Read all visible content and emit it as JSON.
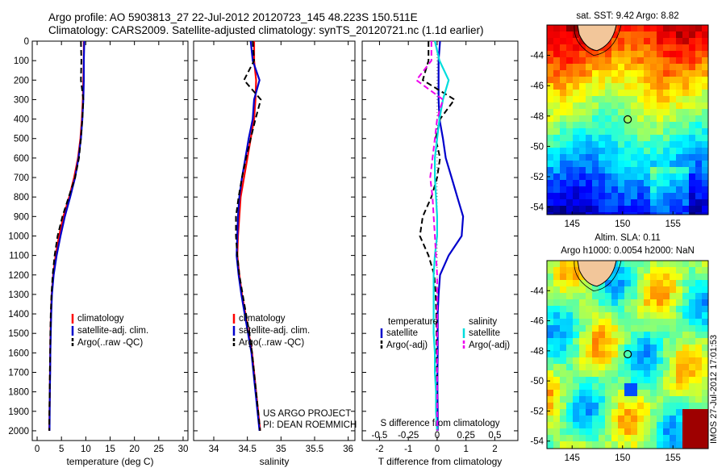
{
  "header": {
    "line1": "Argo profile: AO 5903813_27 22-Jul-2012 20120723_145 48.223S 150.511E",
    "line2": "Climatology: CARS2009. Satellite-adjusted climatology: synTS_20120721.nc (1.1d earlier)"
  },
  "project_note": {
    "line1": "US ARGO PROJECT",
    "line2": "PI: DEAN ROEMMICH"
  },
  "side_stamp": "IMOS 27-Jul-2012 17:01:53",
  "colors": {
    "climatology": "#ff0000",
    "satellite": "#0000cc",
    "argo": "#000000",
    "satellite_salinity": "#00dddd",
    "argo_salinity": "#ee00ee"
  },
  "chart_data": [
    {
      "type": "line",
      "title": "",
      "xlabel": "temperature (deg C)",
      "ylabel": "",
      "xlim": [
        -1,
        31
      ],
      "ylim": [
        2050,
        0
      ],
      "xticks": [
        "0",
        "5",
        "10",
        "15",
        "20",
        "25",
        "30"
      ],
      "xtick_values": [
        0,
        5,
        10,
        15,
        20,
        25,
        30
      ],
      "yticks": [
        "0",
        "100",
        "200",
        "300",
        "400",
        "500",
        "600",
        "700",
        "800",
        "900",
        "1000",
        "1100",
        "1200",
        "1300",
        "1400",
        "1500",
        "1600",
        "1700",
        "1800",
        "1900",
        "2000"
      ],
      "ytick_values": [
        0,
        100,
        200,
        300,
        400,
        500,
        600,
        700,
        800,
        900,
        1000,
        1100,
        1200,
        1300,
        1400,
        1500,
        1600,
        1700,
        1800,
        1900,
        2000
      ],
      "legend": {
        "position": "lower-center",
        "entries": [
          "climatology",
          "satellite-adj. clim.",
          "Argo(..raw -QC)"
        ]
      },
      "series": [
        {
          "name": "climatology",
          "style": "solid",
          "color": "#ff0000",
          "x": [
            9.6,
            9.6,
            9.5,
            9.4,
            9.2,
            8.9,
            8.4,
            7.6,
            6.6,
            5.4,
            4.5,
            3.8,
            3.3,
            3.0,
            2.85,
            2.75,
            2.7,
            2.65,
            2.6,
            2.55,
            2.5
          ],
          "y": [
            0,
            100,
            200,
            300,
            400,
            500,
            600,
            700,
            800,
            900,
            1000,
            1100,
            1200,
            1300,
            1400,
            1500,
            1600,
            1700,
            1800,
            1900,
            2000
          ]
        },
        {
          "name": "satellite-adj. clim.",
          "style": "solid",
          "color": "#0000cc",
          "x": [
            9.7,
            9.6,
            9.6,
            9.5,
            9.3,
            9.0,
            8.5,
            7.8,
            6.8,
            5.7,
            4.8,
            4.0,
            3.4,
            3.05,
            2.9,
            2.8,
            2.72,
            2.68,
            2.62,
            2.58,
            2.55
          ],
          "y": [
            0,
            100,
            200,
            300,
            400,
            500,
            600,
            700,
            800,
            900,
            1000,
            1100,
            1200,
            1300,
            1400,
            1500,
            1600,
            1700,
            1800,
            1900,
            2000
          ]
        },
        {
          "name": "Argo(..raw -QC)",
          "style": "dashed",
          "color": "#000000",
          "x": [
            9.0,
            9.1,
            9.0,
            9.5,
            9.3,
            9.0,
            8.6,
            7.8,
            6.5,
            5.2,
            4.2,
            3.6,
            3.2,
            2.95,
            2.8,
            2.72,
            2.68,
            2.62,
            2.58,
            2.52,
            2.5
          ],
          "y": [
            0,
            100,
            200,
            300,
            400,
            500,
            600,
            700,
            800,
            900,
            1000,
            1100,
            1200,
            1300,
            1400,
            1500,
            1600,
            1700,
            1800,
            1900,
            2000
          ]
        }
      ]
    },
    {
      "type": "line",
      "title": "",
      "xlabel": "salinity",
      "ylabel": "",
      "xlim": [
        33.7,
        36.1
      ],
      "ylim": [
        2050,
        0
      ],
      "xticks": [
        "34",
        "34.5",
        "35",
        "35.5",
        "36"
      ],
      "xtick_values": [
        34,
        34.5,
        35,
        35.5,
        36
      ],
      "legend": {
        "position": "lower-center",
        "entries": [
          "climatology",
          "satellite-adj. clim.",
          "Argo(..raw -QC)"
        ]
      },
      "series": [
        {
          "name": "climatology",
          "style": "solid",
          "color": "#ff0000",
          "x": [
            34.6,
            34.6,
            34.63,
            34.62,
            34.6,
            34.55,
            34.5,
            34.45,
            34.4,
            34.38,
            34.36,
            34.35,
            34.38,
            34.42,
            34.47,
            34.52,
            34.57,
            34.6,
            34.63,
            34.66,
            34.69
          ],
          "y": [
            0,
            100,
            200,
            300,
            400,
            500,
            600,
            700,
            800,
            900,
            1000,
            1100,
            1200,
            1300,
            1400,
            1500,
            1600,
            1700,
            1800,
            1900,
            2000
          ]
        },
        {
          "name": "satellite-adj. clim.",
          "style": "solid",
          "color": "#0000cc",
          "x": [
            34.55,
            34.58,
            34.68,
            34.6,
            34.58,
            34.52,
            34.47,
            34.42,
            34.38,
            34.36,
            34.35,
            34.34,
            34.37,
            34.41,
            34.46,
            34.51,
            34.56,
            34.59,
            34.62,
            34.65,
            34.68
          ],
          "y": [
            0,
            100,
            200,
            300,
            400,
            500,
            600,
            700,
            800,
            900,
            1000,
            1100,
            1200,
            1300,
            1400,
            1500,
            1600,
            1700,
            1800,
            1900,
            2000
          ]
        },
        {
          "name": "Argo(..raw -QC)",
          "style": "dashed",
          "color": "#000000",
          "x": [
            34.58,
            34.6,
            34.45,
            34.7,
            34.62,
            34.55,
            34.48,
            34.42,
            34.37,
            34.33,
            34.33,
            34.35,
            34.38,
            34.43,
            34.48,
            34.53,
            34.57,
            34.6,
            34.63,
            34.66,
            34.69
          ],
          "y": [
            0,
            100,
            200,
            300,
            400,
            500,
            600,
            700,
            800,
            900,
            1000,
            1100,
            1200,
            1300,
            1400,
            1500,
            1600,
            1700,
            1800,
            1900,
            2000
          ]
        }
      ]
    },
    {
      "type": "line",
      "title": "",
      "xlabel": "T difference from climatology",
      "xlabel2": "S difference from climatology",
      "ylabel": "",
      "xlim": [
        -2.6,
        2.8
      ],
      "xlim_salinity": [
        -0.65,
        0.7
      ],
      "ylim": [
        2050,
        0
      ],
      "xticks": [
        "-2",
        "-1",
        "0",
        "1",
        "2"
      ],
      "xtick_values": [
        -2,
        -1,
        0,
        1,
        2
      ],
      "xticks_salinity": [
        "-0.5",
        "-0.25",
        "0",
        "0.25",
        "0.5"
      ],
      "xtick_values_salinity": [
        -0.5,
        -0.25,
        0,
        0.25,
        0.5
      ],
      "legend": {
        "position": "lower-center",
        "temperature_header": "temperature",
        "salinity_header": "salinity",
        "entries": [
          "satellite",
          "Argo(-adj)",
          "satellite",
          "Argo(-adj)"
        ]
      },
      "series": [
        {
          "name": "satellite",
          "group": "temperature",
          "style": "solid",
          "color": "#0000cc",
          "x": [
            0.1,
            0.05,
            0.05,
            0.05,
            0.08,
            0.2,
            0.3,
            0.5,
            0.7,
            0.9,
            0.85,
            0.4,
            0.1,
            0.05,
            0.02,
            0.02,
            0.02,
            0.01,
            0.01,
            0.02,
            0.02
          ],
          "y": [
            0,
            100,
            200,
            300,
            400,
            500,
            600,
            700,
            800,
            900,
            1000,
            1100,
            1200,
            1300,
            1400,
            1500,
            1600,
            1700,
            1800,
            1900,
            2000
          ]
        },
        {
          "name": "Argo(-adj)",
          "group": "temperature",
          "style": "dashed",
          "color": "#000000",
          "x": [
            -0.3,
            -0.3,
            -0.5,
            0.6,
            0.1,
            -0.05,
            0.1,
            0.0,
            -0.2,
            -0.5,
            -0.6,
            -0.3,
            -0.1,
            -0.05,
            -0.03,
            -0.02,
            -0.02,
            -0.01,
            -0.01,
            -0.02,
            0.0
          ],
          "y": [
            0,
            100,
            200,
            300,
            400,
            500,
            600,
            700,
            800,
            900,
            1000,
            1100,
            1200,
            1300,
            1400,
            1500,
            1600,
            1700,
            1800,
            1900,
            2000
          ]
        },
        {
          "name": "satellite",
          "group": "salinity",
          "style": "solid",
          "color": "#00dddd",
          "x": [
            -0.02,
            0.02,
            0.1,
            0.05,
            0.02,
            0.0,
            -0.02,
            -0.02,
            -0.01,
            0.0,
            0.0,
            -0.02,
            -0.03,
            -0.03,
            -0.03,
            -0.03,
            -0.02,
            -0.02,
            -0.01,
            -0.01,
            0.0
          ],
          "y": [
            0,
            100,
            200,
            300,
            400,
            500,
            600,
            700,
            800,
            900,
            1000,
            1100,
            1200,
            1300,
            1400,
            1500,
            1600,
            1700,
            1800,
            1900,
            2000
          ]
        },
        {
          "name": "Argo(-adj)",
          "group": "salinity",
          "style": "dashed",
          "color": "#ee00ee",
          "x": [
            -0.05,
            -0.05,
            -0.18,
            0.05,
            0.0,
            -0.02,
            -0.04,
            -0.06,
            -0.04,
            -0.03,
            -0.02,
            -0.01,
            0.0,
            0.0,
            0.0,
            0.0,
            0.0,
            0.0,
            0.0,
            0.0,
            0.0
          ],
          "y": [
            0,
            100,
            200,
            300,
            400,
            500,
            600,
            700,
            800,
            900,
            1000,
            1100,
            1200,
            1300,
            1400,
            1500,
            1600,
            1700,
            1800,
            1900,
            2000
          ]
        }
      ]
    },
    {
      "type": "heatmap",
      "title": "sat. SST: 9.42 Argo: 8.82",
      "xlabel": "",
      "ylabel": "",
      "xlim": [
        142.5,
        158.5
      ],
      "ylim": [
        -54.5,
        -42.0
      ],
      "xticks": [
        "145",
        "150",
        "155"
      ],
      "xtick_values": [
        145,
        150,
        155
      ],
      "yticks": [
        "-44",
        "-46",
        "-48",
        "-50",
        "-52",
        "-54"
      ],
      "ytick_values": [
        -44,
        -46,
        -48,
        -50,
        -52,
        -54
      ],
      "marker": {
        "lon": 150.511,
        "lat": -48.223
      },
      "colormap": "jet"
    },
    {
      "type": "heatmap",
      "title": "Altim. SLA: 0.11",
      "subtitle": "Argo h1000: 0.0054 h2000: NaN",
      "xlabel": "",
      "ylabel": "",
      "xlim": [
        142.5,
        158.5
      ],
      "ylim": [
        -54.5,
        -42.0
      ],
      "xticks": [
        "145",
        "150",
        "155"
      ],
      "xtick_values": [
        145,
        150,
        155
      ],
      "yticks": [
        "-44",
        "-46",
        "-48",
        "-50",
        "-52",
        "-54"
      ],
      "ytick_values": [
        -44,
        -46,
        -48,
        -50,
        -52,
        -54
      ],
      "marker": {
        "lon": 150.511,
        "lat": -48.223
      },
      "colormap": "jet"
    }
  ]
}
